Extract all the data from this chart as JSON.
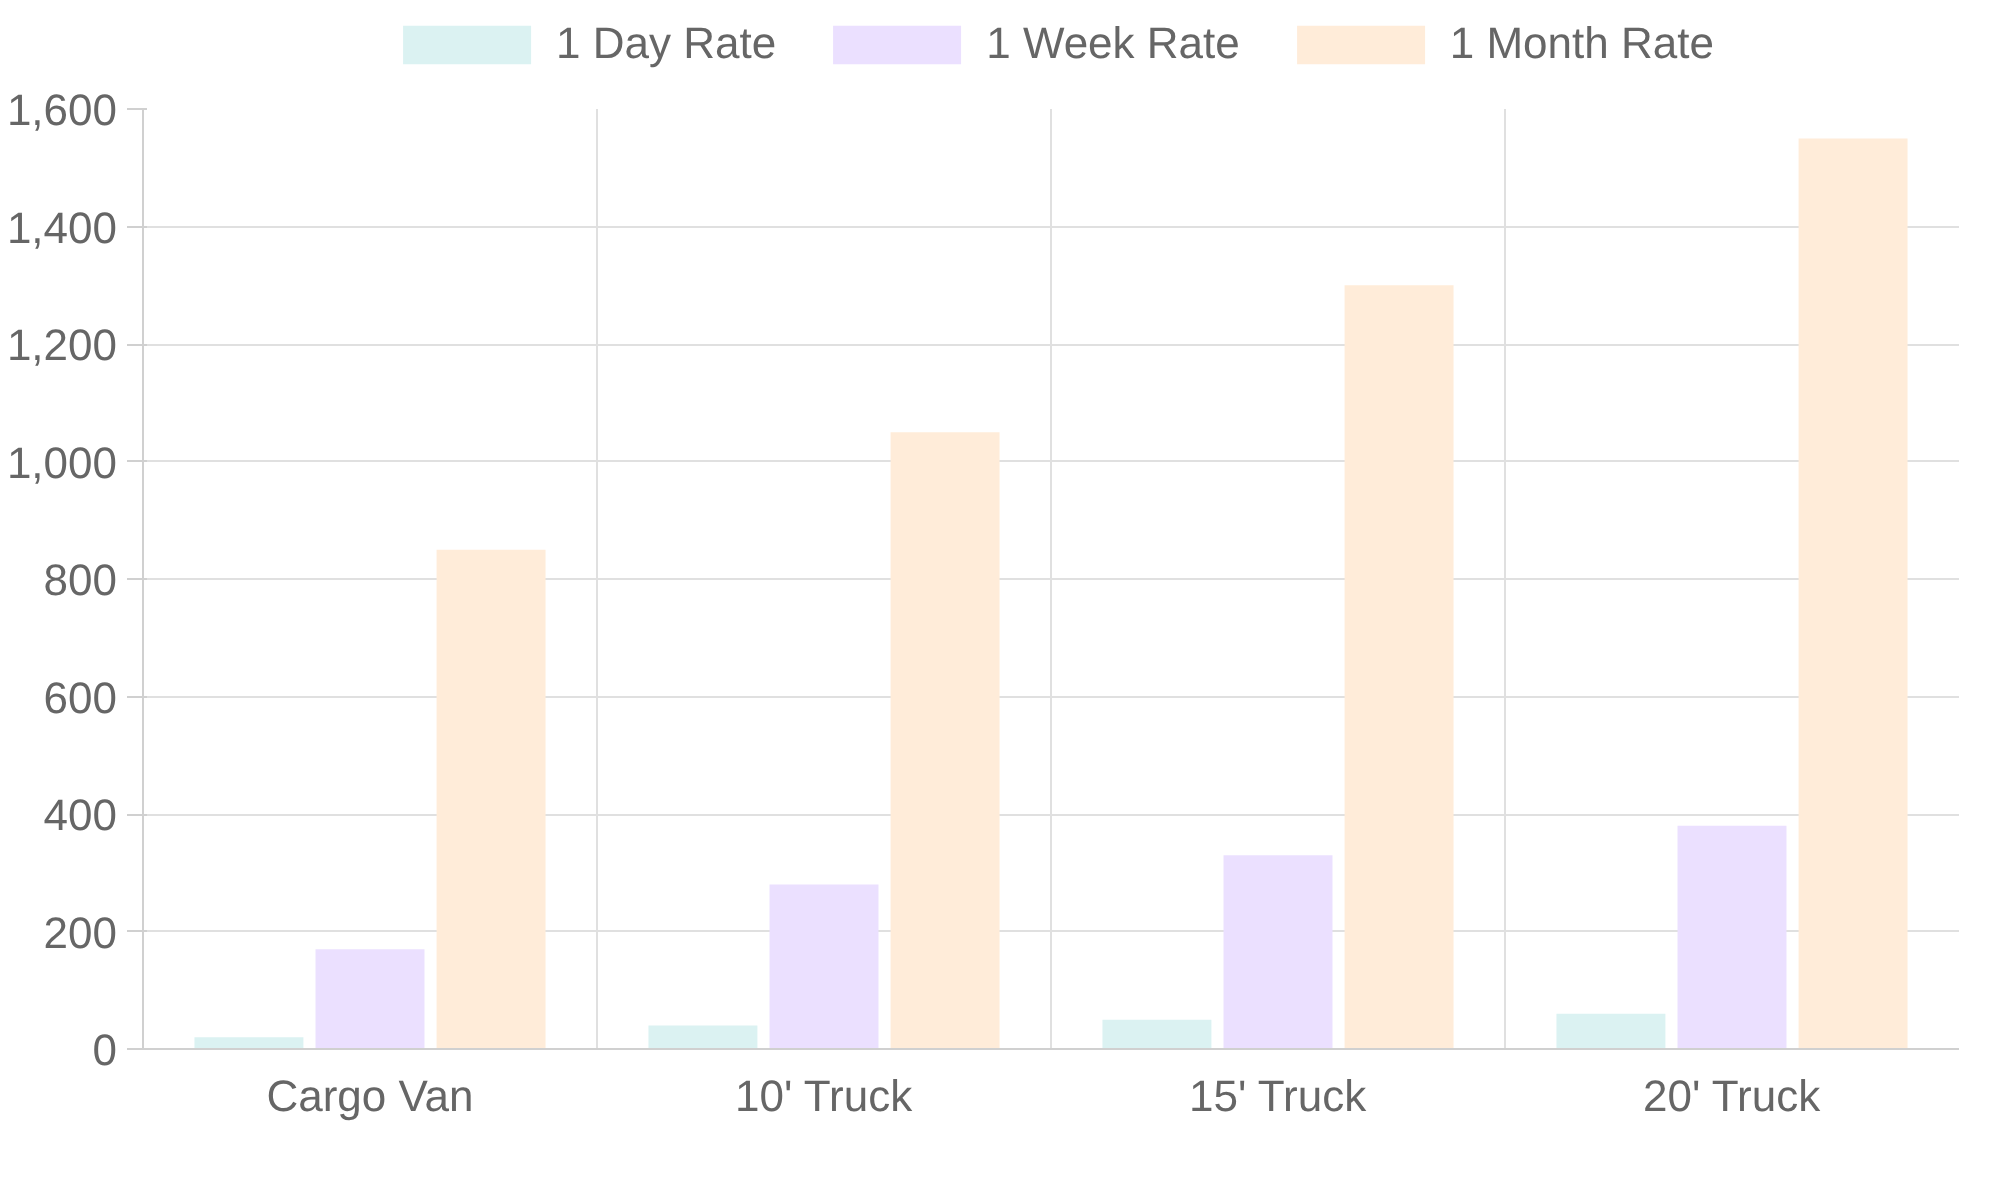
{
  "chart_data": {
    "type": "bar",
    "categories": [
      "Cargo Van",
      "10' Truck",
      "15' Truck",
      "20' Truck"
    ],
    "series": [
      {
        "name": "1 Day Rate",
        "color": "#dbf2f2",
        "values": [
          20,
          40,
          50,
          60
        ]
      },
      {
        "name": "1 Week Rate",
        "color": "#ebe0ff",
        "values": [
          170,
          280,
          330,
          380
        ]
      },
      {
        "name": "1 Month Rate",
        "color": "#ffecd9",
        "values": [
          850,
          1050,
          1300,
          1550
        ]
      }
    ],
    "ylim": [
      0,
      1600
    ],
    "yticks": [
      0,
      {
        "value": 200,
        "label": "200"
      },
      400,
      600,
      800,
      {
        "value": 1000,
        "label": "1,000"
      },
      {
        "value": 1200,
        "label": "1,200"
      },
      {
        "value": 1400,
        "label": "1,400"
      },
      {
        "value": 1600,
        "label": "1,600"
      }
    ],
    "grid": true,
    "legend": "top"
  }
}
